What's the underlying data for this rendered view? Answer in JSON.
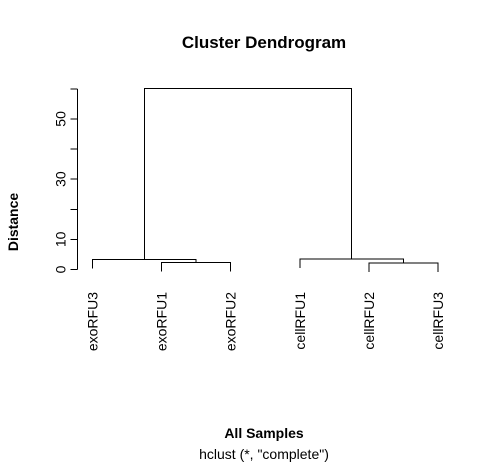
{
  "chart_data": {
    "type": "dendrogram",
    "title": "Cluster Dendrogram",
    "xlabel": "All Samples",
    "subtitle": "hclust (*, \"complete\")",
    "ylabel": "Distance",
    "ylim": [
      0,
      60
    ],
    "yticks": [
      0,
      10,
      30,
      50
    ],
    "ytick_marks": [
      0,
      10,
      20,
      30,
      40,
      50,
      60
    ],
    "leaves": [
      "exoRFU3",
      "exoRFU1",
      "exoRFU2",
      "cellRFU1",
      "cellRFU2",
      "cellRFU3"
    ],
    "merges": [
      {
        "left": "leaf:1",
        "right": "leaf:2",
        "height": 2.3
      },
      {
        "left": "leaf:0",
        "right": "merge:0",
        "height": 3.3
      },
      {
        "left": "leaf:4",
        "right": "leaf:5",
        "height": 2.1
      },
      {
        "left": "leaf:3",
        "right": "merge:2",
        "height": 3.5
      },
      {
        "left": "merge:1",
        "right": "merge:3",
        "height": 60.1
      }
    ],
    "leaf_height_offset": 3.0
  }
}
